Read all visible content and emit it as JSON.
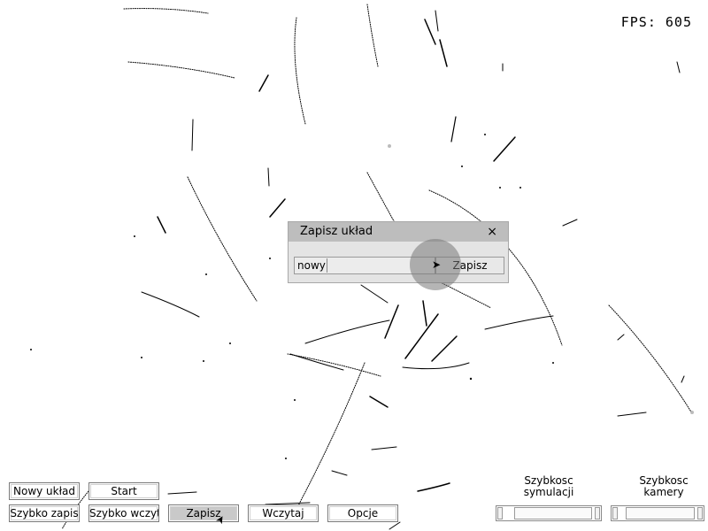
{
  "hud": {
    "fps_label": "FPS: 605"
  },
  "toolbar": {
    "new_layout": "Nowy układ",
    "start": "Start",
    "quick_save": "Szybko zapis",
    "quick_load": "Szybko wczyt",
    "save": "Zapisz",
    "load": "Wczytaj",
    "options": "Opcje"
  },
  "speed": {
    "simulation_label_1": "Szybkosc",
    "simulation_label_2": "symulacji",
    "camera_label_1": "Szybkosc",
    "camera_label_2": "kamery"
  },
  "save_dialog": {
    "title": "Zapisz układ",
    "close_glyph": "×",
    "name_value": "nowy",
    "save_label": "Zapisz"
  },
  "colors": {
    "background": "#ffffff",
    "trail": "#000000",
    "active_button": "#c9c9c9"
  }
}
